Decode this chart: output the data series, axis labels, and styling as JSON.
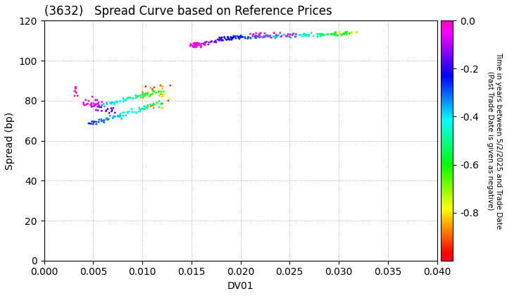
{
  "title": "(3632)   Spread Curve based on Reference Prices",
  "xlabel": "DV01",
  "ylabel": "Spread (bp)",
  "xlim": [
    0.0,
    0.04
  ],
  "ylim": [
    0,
    120
  ],
  "xticks": [
    0.0,
    0.005,
    0.01,
    0.015,
    0.02,
    0.025,
    0.03,
    0.035,
    0.04
  ],
  "yticks": [
    0,
    20,
    40,
    60,
    80,
    100,
    120
  ],
  "colorbar_label": "Time in years between 5/2/2025 and Trade Date\n(Past Trade Date is given as negative)",
  "colorbar_vmin": -1.0,
  "colorbar_vmax": 0.0,
  "colorbar_ticks": [
    0.0,
    -0.2,
    -0.4,
    -0.6,
    -0.8
  ],
  "background_color": "#ffffff",
  "grid_color": "#999999",
  "point_size": 4
}
